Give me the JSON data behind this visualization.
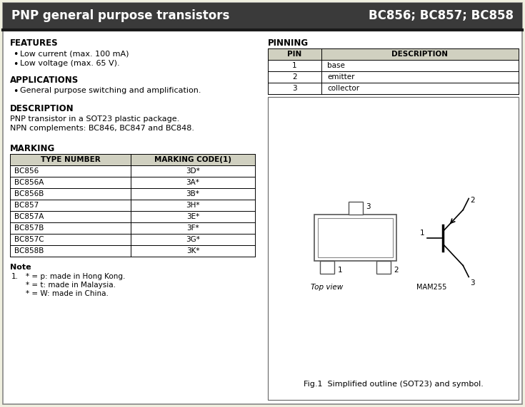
{
  "title_left": "PNP general purpose transistors",
  "title_right": "BC856; BC857; BC858",
  "bg_color": "#ffffff",
  "page_bg": "#f0f0e0",
  "header_bar_color": "#3a3a3a",
  "features_header": "FEATURES",
  "features_bullets": [
    "Low current (max. 100 mA)",
    "Low voltage (max. 65 V)."
  ],
  "applications_header": "APPLICATIONS",
  "applications_bullets": [
    "General purpose switching and amplification."
  ],
  "description_header": "DESCRIPTION",
  "description_text": [
    "PNP transistor in a SOT23 plastic package.",
    "NPN complements: BC846, BC847 and BC848."
  ],
  "marking_header": "MARKING",
  "marking_table_headers": [
    "TYPE NUMBER",
    "MARKING CODE(1)"
  ],
  "marking_table_rows": [
    [
      "BC856",
      "3D*"
    ],
    [
      "BC856A",
      "3A*"
    ],
    [
      "BC856B",
      "3B*"
    ],
    [
      "BC857",
      "3H*"
    ],
    [
      "BC857A",
      "3E*"
    ],
    [
      "BC857B",
      "3F*"
    ],
    [
      "BC857C",
      "3G*"
    ],
    [
      "BC858B",
      "3K*"
    ]
  ],
  "note_header": "Note",
  "note_lines": [
    [
      "1.",
      "* = p: made in Hong Kong."
    ],
    [
      "",
      "* = t: made in Malaysia."
    ],
    [
      "",
      "* = W: made in China."
    ]
  ],
  "pinning_header": "PINNING",
  "pinning_table_headers": [
    "PIN",
    "DESCRIPTION"
  ],
  "pinning_table_rows": [
    [
      "1",
      "base"
    ],
    [
      "2",
      "emitter"
    ],
    [
      "3",
      "collector"
    ]
  ],
  "fig_caption": "Fig.1  Simplified outline (SOT23) and symbol.",
  "top_view_label": "Top view",
  "mam_label": "MAM255"
}
